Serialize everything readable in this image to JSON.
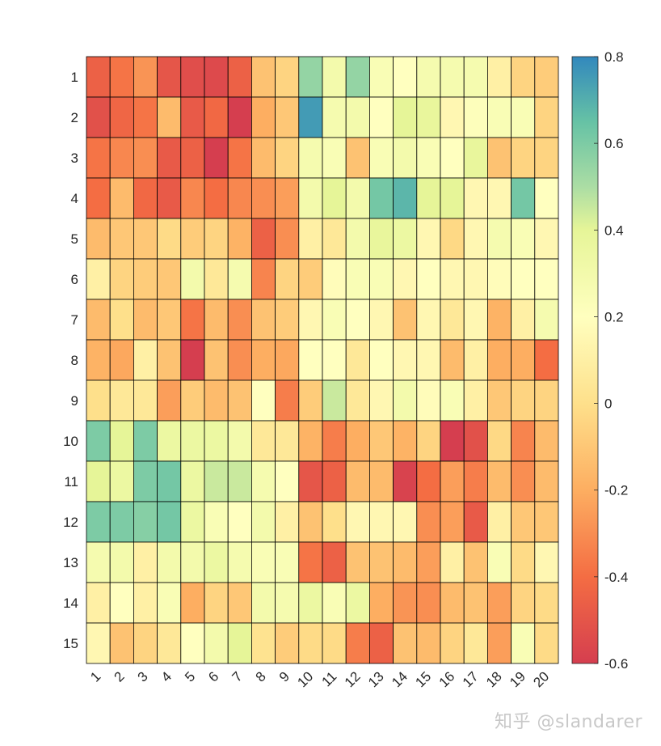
{
  "chart_data": {
    "type": "heatmap",
    "rows": [
      "1",
      "2",
      "3",
      "4",
      "5",
      "6",
      "7",
      "8",
      "9",
      "10",
      "11",
      "12",
      "13",
      "14",
      "15"
    ],
    "cols": [
      "1",
      "2",
      "3",
      "4",
      "5",
      "6",
      "7",
      "8",
      "9",
      "10",
      "11",
      "12",
      "13",
      "14",
      "15",
      "16",
      "17",
      "18",
      "19",
      "20"
    ],
    "values": [
      [
        -0.45,
        -0.38,
        -0.28,
        -0.5,
        -0.53,
        -0.55,
        -0.45,
        -0.12,
        -0.05,
        0.55,
        0.3,
        0.55,
        0.25,
        0.2,
        0.28,
        0.28,
        0.28,
        0.1,
        -0.05,
        -0.08
      ],
      [
        -0.52,
        -0.43,
        -0.38,
        -0.15,
        -0.48,
        -0.42,
        -0.6,
        -0.2,
        -0.1,
        0.75,
        0.28,
        0.3,
        0.2,
        0.4,
        0.38,
        0.15,
        0.22,
        0.25,
        0.25,
        -0.05
      ],
      [
        -0.38,
        -0.32,
        -0.3,
        -0.48,
        -0.45,
        -0.6,
        -0.38,
        -0.15,
        -0.05,
        0.28,
        0.25,
        -0.12,
        0.25,
        0.3,
        0.25,
        0.2,
        0.38,
        -0.12,
        -0.05,
        -0.05
      ],
      [
        -0.4,
        -0.15,
        -0.42,
        -0.48,
        -0.32,
        -0.4,
        -0.32,
        -0.3,
        -0.25,
        0.3,
        0.4,
        0.3,
        0.62,
        0.68,
        0.4,
        0.4,
        0.15,
        0.15,
        0.62,
        0.2
      ],
      [
        -0.15,
        -0.1,
        -0.1,
        -0.02,
        -0.08,
        -0.05,
        -0.18,
        -0.45,
        -0.3,
        0.1,
        0.05,
        0.3,
        0.38,
        0.35,
        0.15,
        -0.03,
        0.15,
        0.28,
        0.25,
        0.15
      ],
      [
        0.1,
        -0.05,
        -0.08,
        -0.1,
        0.3,
        0.05,
        0.28,
        -0.33,
        -0.05,
        -0.08,
        0.18,
        0.25,
        0.25,
        0.15,
        0.2,
        0.15,
        0.15,
        0.18,
        0.2,
        0.2
      ],
      [
        -0.15,
        0.0,
        -0.15,
        -0.1,
        -0.38,
        -0.15,
        -0.3,
        -0.12,
        -0.08,
        0.15,
        0.25,
        0.2,
        0.15,
        -0.12,
        0.15,
        0.05,
        0.15,
        -0.18,
        0.1,
        0.28
      ],
      [
        -0.18,
        -0.22,
        0.1,
        -0.12,
        -0.6,
        -0.12,
        -0.3,
        -0.2,
        -0.22,
        0.2,
        0.2,
        0.05,
        0.2,
        0.15,
        0.15,
        -0.15,
        0.1,
        -0.2,
        -0.2,
        -0.4
      ],
      [
        0.0,
        0.05,
        0.05,
        -0.25,
        -0.08,
        -0.15,
        -0.12,
        0.2,
        -0.35,
        -0.08,
        0.45,
        0.05,
        0.15,
        0.3,
        0.18,
        0.25,
        0.1,
        -0.1,
        -0.05,
        -0.05
      ],
      [
        0.6,
        0.4,
        0.6,
        0.35,
        0.35,
        0.35,
        0.3,
        0.05,
        0.05,
        -0.18,
        -0.35,
        -0.2,
        -0.1,
        -0.18,
        -0.05,
        -0.6,
        -0.52,
        -0.03,
        -0.33,
        -0.15
      ],
      [
        0.4,
        0.35,
        0.6,
        0.62,
        0.35,
        0.45,
        0.45,
        0.28,
        0.2,
        -0.5,
        -0.45,
        -0.15,
        -0.15,
        -0.58,
        -0.4,
        -0.25,
        -0.35,
        -0.15,
        -0.3,
        -0.15
      ],
      [
        0.6,
        0.6,
        0.58,
        0.62,
        0.35,
        0.25,
        0.2,
        0.3,
        0.1,
        -0.12,
        0.0,
        0.15,
        0.15,
        0.15,
        -0.3,
        -0.25,
        -0.48,
        0.1,
        -0.1,
        -0.1
      ],
      [
        0.28,
        0.3,
        0.1,
        0.3,
        0.3,
        0.35,
        0.28,
        0.25,
        0.25,
        -0.38,
        -0.45,
        -0.12,
        -0.12,
        -0.15,
        -0.25,
        0.1,
        -0.12,
        0.25,
        -0.02,
        0.15
      ],
      [
        0.1,
        0.2,
        0.1,
        0.25,
        -0.2,
        -0.05,
        -0.1,
        0.3,
        0.28,
        0.35,
        0.25,
        0.35,
        -0.2,
        -0.28,
        -0.3,
        -0.15,
        -0.12,
        -0.25,
        -0.05,
        -0.02
      ],
      [
        0.15,
        -0.12,
        -0.05,
        0.05,
        0.2,
        0.3,
        0.4,
        0.02,
        -0.08,
        -0.02,
        -0.02,
        -0.35,
        -0.45,
        -0.12,
        -0.15,
        -0.05,
        0.05,
        -0.25,
        0.25,
        -0.02
      ]
    ],
    "colorbar": {
      "min": -0.6,
      "max": 0.8,
      "ticks": [
        0.8,
        0.6,
        0.4,
        0.2,
        0,
        -0.2,
        -0.4,
        -0.6
      ],
      "tick_labels": [
        "0.8",
        "0.6",
        "0.4",
        "0.2",
        "0",
        "-0.2",
        "-0.4",
        "-0.6"
      ]
    },
    "colormap": {
      "name": "Spectral",
      "stops": [
        [
          -0.6,
          "#d53e4f"
        ],
        [
          -0.4,
          "#f46d43"
        ],
        [
          -0.2,
          "#fdae61"
        ],
        [
          0.0,
          "#fee08b"
        ],
        [
          0.2,
          "#ffffbf"
        ],
        [
          0.4,
          "#e6f598"
        ],
        [
          0.5,
          "#abdda4"
        ],
        [
          0.65,
          "#66c2a5"
        ],
        [
          0.8,
          "#3288bd"
        ]
      ]
    },
    "title": "",
    "xlabel": "",
    "ylabel": "",
    "grid": true,
    "cell_edge_color": "#000000"
  },
  "watermark": "知乎 @slandarer"
}
